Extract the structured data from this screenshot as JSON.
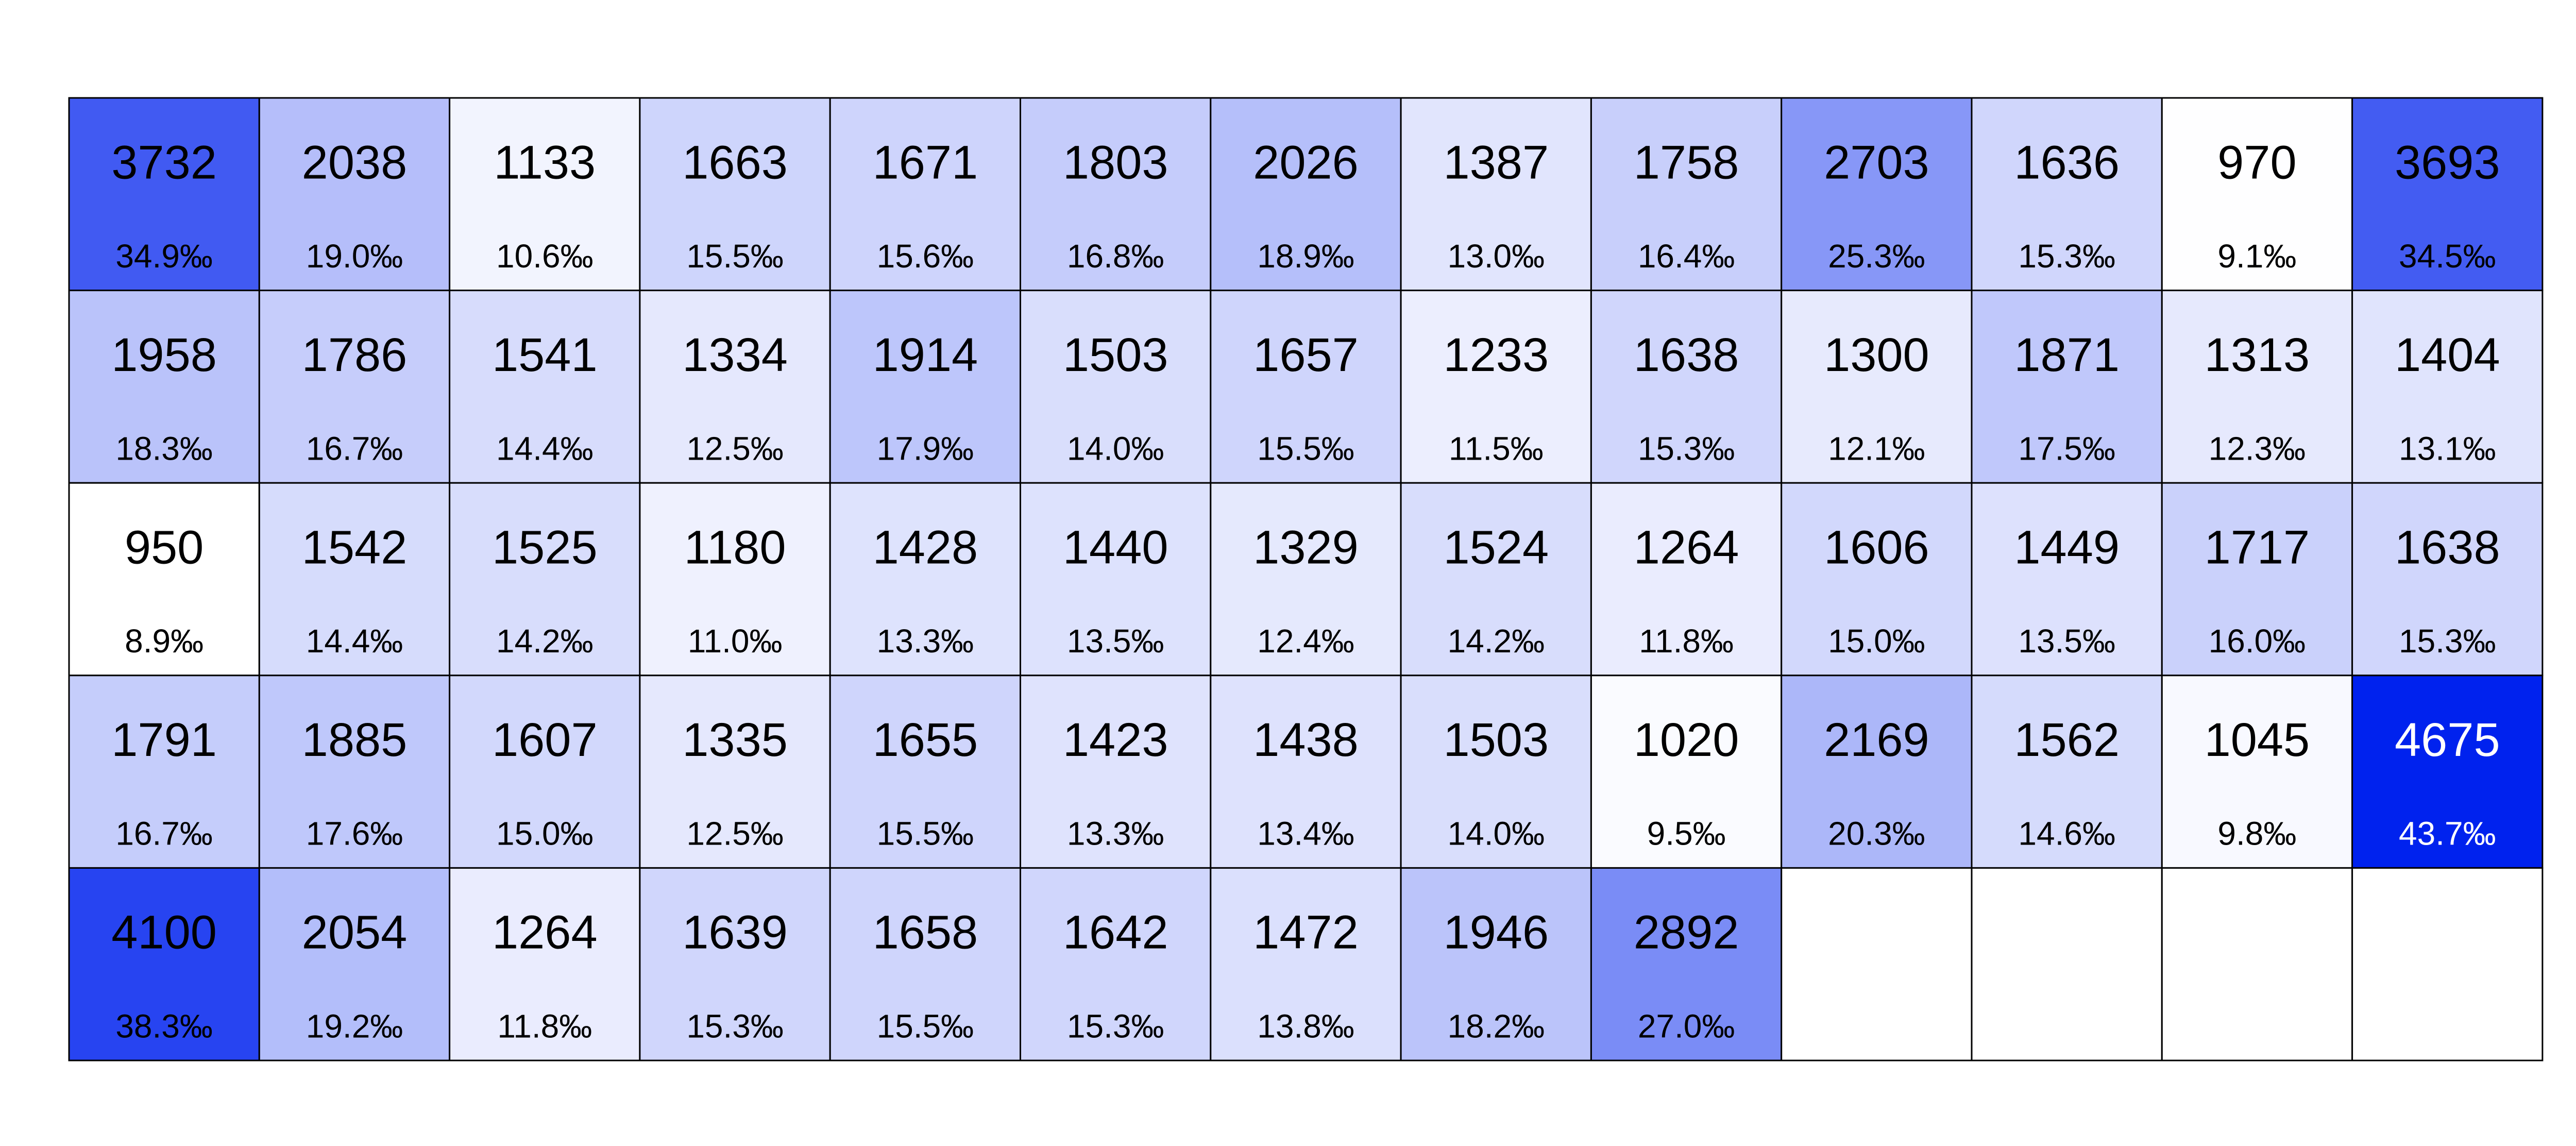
{
  "chart_data": {
    "type": "heatmap",
    "title": "",
    "xlabel": "",
    "ylabel": "",
    "grid": true,
    "columns": 13,
    "rows": 5,
    "cells": [
      [
        {
          "value": 3732,
          "label": "34.9‰"
        },
        {
          "value": 2038,
          "label": "19.0‰"
        },
        {
          "value": 1133,
          "label": "10.6‰"
        },
        {
          "value": 1663,
          "label": "15.5‰"
        },
        {
          "value": 1671,
          "label": "15.6‰"
        },
        {
          "value": 1803,
          "label": "16.8‰"
        },
        {
          "value": 2026,
          "label": "18.9‰"
        },
        {
          "value": 1387,
          "label": "13.0‰"
        },
        {
          "value": 1758,
          "label": "16.4‰"
        },
        {
          "value": 2703,
          "label": "25.3‰"
        },
        {
          "value": 1636,
          "label": "15.3‰"
        },
        {
          "value": 970,
          "label": "9.1‰"
        },
        {
          "value": 3693,
          "label": "34.5‰"
        }
      ],
      [
        {
          "value": 1958,
          "label": "18.3‰"
        },
        {
          "value": 1786,
          "label": "16.7‰"
        },
        {
          "value": 1541,
          "label": "14.4‰"
        },
        {
          "value": 1334,
          "label": "12.5‰"
        },
        {
          "value": 1914,
          "label": "17.9‰"
        },
        {
          "value": 1503,
          "label": "14.0‰"
        },
        {
          "value": 1657,
          "label": "15.5‰"
        },
        {
          "value": 1233,
          "label": "11.5‰"
        },
        {
          "value": 1638,
          "label": "15.3‰"
        },
        {
          "value": 1300,
          "label": "12.1‰"
        },
        {
          "value": 1871,
          "label": "17.5‰"
        },
        {
          "value": 1313,
          "label": "12.3‰"
        },
        {
          "value": 1404,
          "label": "13.1‰"
        }
      ],
      [
        {
          "value": 950,
          "label": "8.9‰"
        },
        {
          "value": 1542,
          "label": "14.4‰"
        },
        {
          "value": 1525,
          "label": "14.2‰"
        },
        {
          "value": 1180,
          "label": "11.0‰"
        },
        {
          "value": 1428,
          "label": "13.3‰"
        },
        {
          "value": 1440,
          "label": "13.5‰"
        },
        {
          "value": 1329,
          "label": "12.4‰"
        },
        {
          "value": 1524,
          "label": "14.2‰"
        },
        {
          "value": 1264,
          "label": "11.8‰"
        },
        {
          "value": 1606,
          "label": "15.0‰"
        },
        {
          "value": 1449,
          "label": "13.5‰"
        },
        {
          "value": 1717,
          "label": "16.0‰"
        },
        {
          "value": 1638,
          "label": "15.3‰"
        }
      ],
      [
        {
          "value": 1791,
          "label": "16.7‰"
        },
        {
          "value": 1885,
          "label": "17.6‰"
        },
        {
          "value": 1607,
          "label": "15.0‰"
        },
        {
          "value": 1335,
          "label": "12.5‰"
        },
        {
          "value": 1655,
          "label": "15.5‰"
        },
        {
          "value": 1423,
          "label": "13.3‰"
        },
        {
          "value": 1438,
          "label": "13.4‰"
        },
        {
          "value": 1503,
          "label": "14.0‰"
        },
        {
          "value": 1020,
          "label": "9.5‰"
        },
        {
          "value": 2169,
          "label": "20.3‰"
        },
        {
          "value": 1562,
          "label": "14.6‰"
        },
        {
          "value": 1045,
          "label": "9.8‰"
        },
        {
          "value": 4675,
          "label": "43.7‰"
        }
      ],
      [
        {
          "value": 4100,
          "label": "38.3‰"
        },
        {
          "value": 2054,
          "label": "19.2‰"
        },
        {
          "value": 1264,
          "label": "11.8‰"
        },
        {
          "value": 1639,
          "label": "15.3‰"
        },
        {
          "value": 1658,
          "label": "15.5‰"
        },
        {
          "value": 1642,
          "label": "15.3‰"
        },
        {
          "value": 1472,
          "label": "13.8‰"
        },
        {
          "value": 1946,
          "label": "18.2‰"
        },
        {
          "value": 2892,
          "label": "27.0‰"
        },
        null,
        null,
        null,
        null
      ]
    ],
    "color_scale": {
      "min": 950,
      "max": 4675,
      "low_color": "#ffffff",
      "high_color": "#0022ee",
      "empty_color": "#ffffff",
      "dark_text_color": "#000000",
      "light_text_color": "#ffffff"
    }
  }
}
